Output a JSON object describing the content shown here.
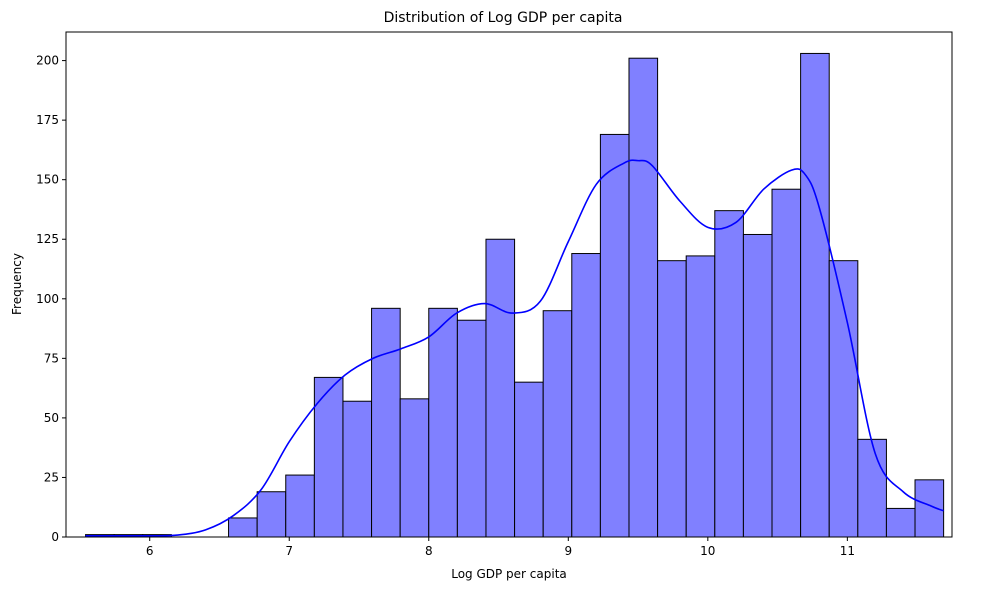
{
  "chart_data": {
    "type": "bar",
    "title": "Distribution of Log GDP per capita",
    "xlabel": "Log GDP per capita",
    "ylabel": "Frequency",
    "xlim": [
      5.4,
      11.75
    ],
    "ylim": [
      0,
      212
    ],
    "x_ticks": [
      6,
      7,
      8,
      9,
      10,
      11
    ],
    "y_ticks": [
      0,
      25,
      50,
      75,
      100,
      125,
      150,
      175,
      200
    ],
    "bin_edges": [
      5.54,
      5.745,
      5.95,
      6.155,
      6.36,
      6.565,
      6.77,
      6.975,
      7.18,
      7.385,
      7.59,
      7.795,
      8.0,
      8.205,
      8.41,
      8.615,
      8.82,
      9.025,
      9.23,
      9.435,
      9.64,
      9.845,
      10.05,
      10.255,
      10.46,
      10.665,
      10.87,
      11.075,
      11.28,
      11.485,
      11.69
    ],
    "values": [
      1,
      1,
      1,
      0,
      0,
      8,
      19,
      26,
      67,
      57,
      96,
      58,
      96,
      91,
      125,
      65,
      95,
      119,
      169,
      201,
      116,
      118,
      137,
      127,
      146,
      203,
      116,
      41,
      12,
      24
    ],
    "kde": {
      "x": [
        5.54,
        6.0,
        6.2,
        6.4,
        6.6,
        6.8,
        7.0,
        7.2,
        7.4,
        7.6,
        7.8,
        8.0,
        8.2,
        8.4,
        8.6,
        8.8,
        9.0,
        9.2,
        9.4,
        9.5,
        9.6,
        9.8,
        10.0,
        10.2,
        10.4,
        10.6,
        10.7,
        10.8,
        11.0,
        11.2,
        11.4,
        11.6,
        11.69
      ],
      "y": [
        0.5,
        0.5,
        0.8,
        3,
        9,
        20,
        40,
        56,
        68,
        75,
        79,
        84,
        94,
        98,
        94,
        99,
        124,
        148,
        157,
        158,
        156,
        141,
        130,
        132,
        146,
        154,
        152,
        138,
        90,
        35,
        19,
        13,
        11
      ]
    },
    "colors": {
      "bar_fill": "#8080ff",
      "bar_edge": "#000000",
      "kde_line": "#0000ff"
    },
    "grid": false,
    "legend": false
  }
}
